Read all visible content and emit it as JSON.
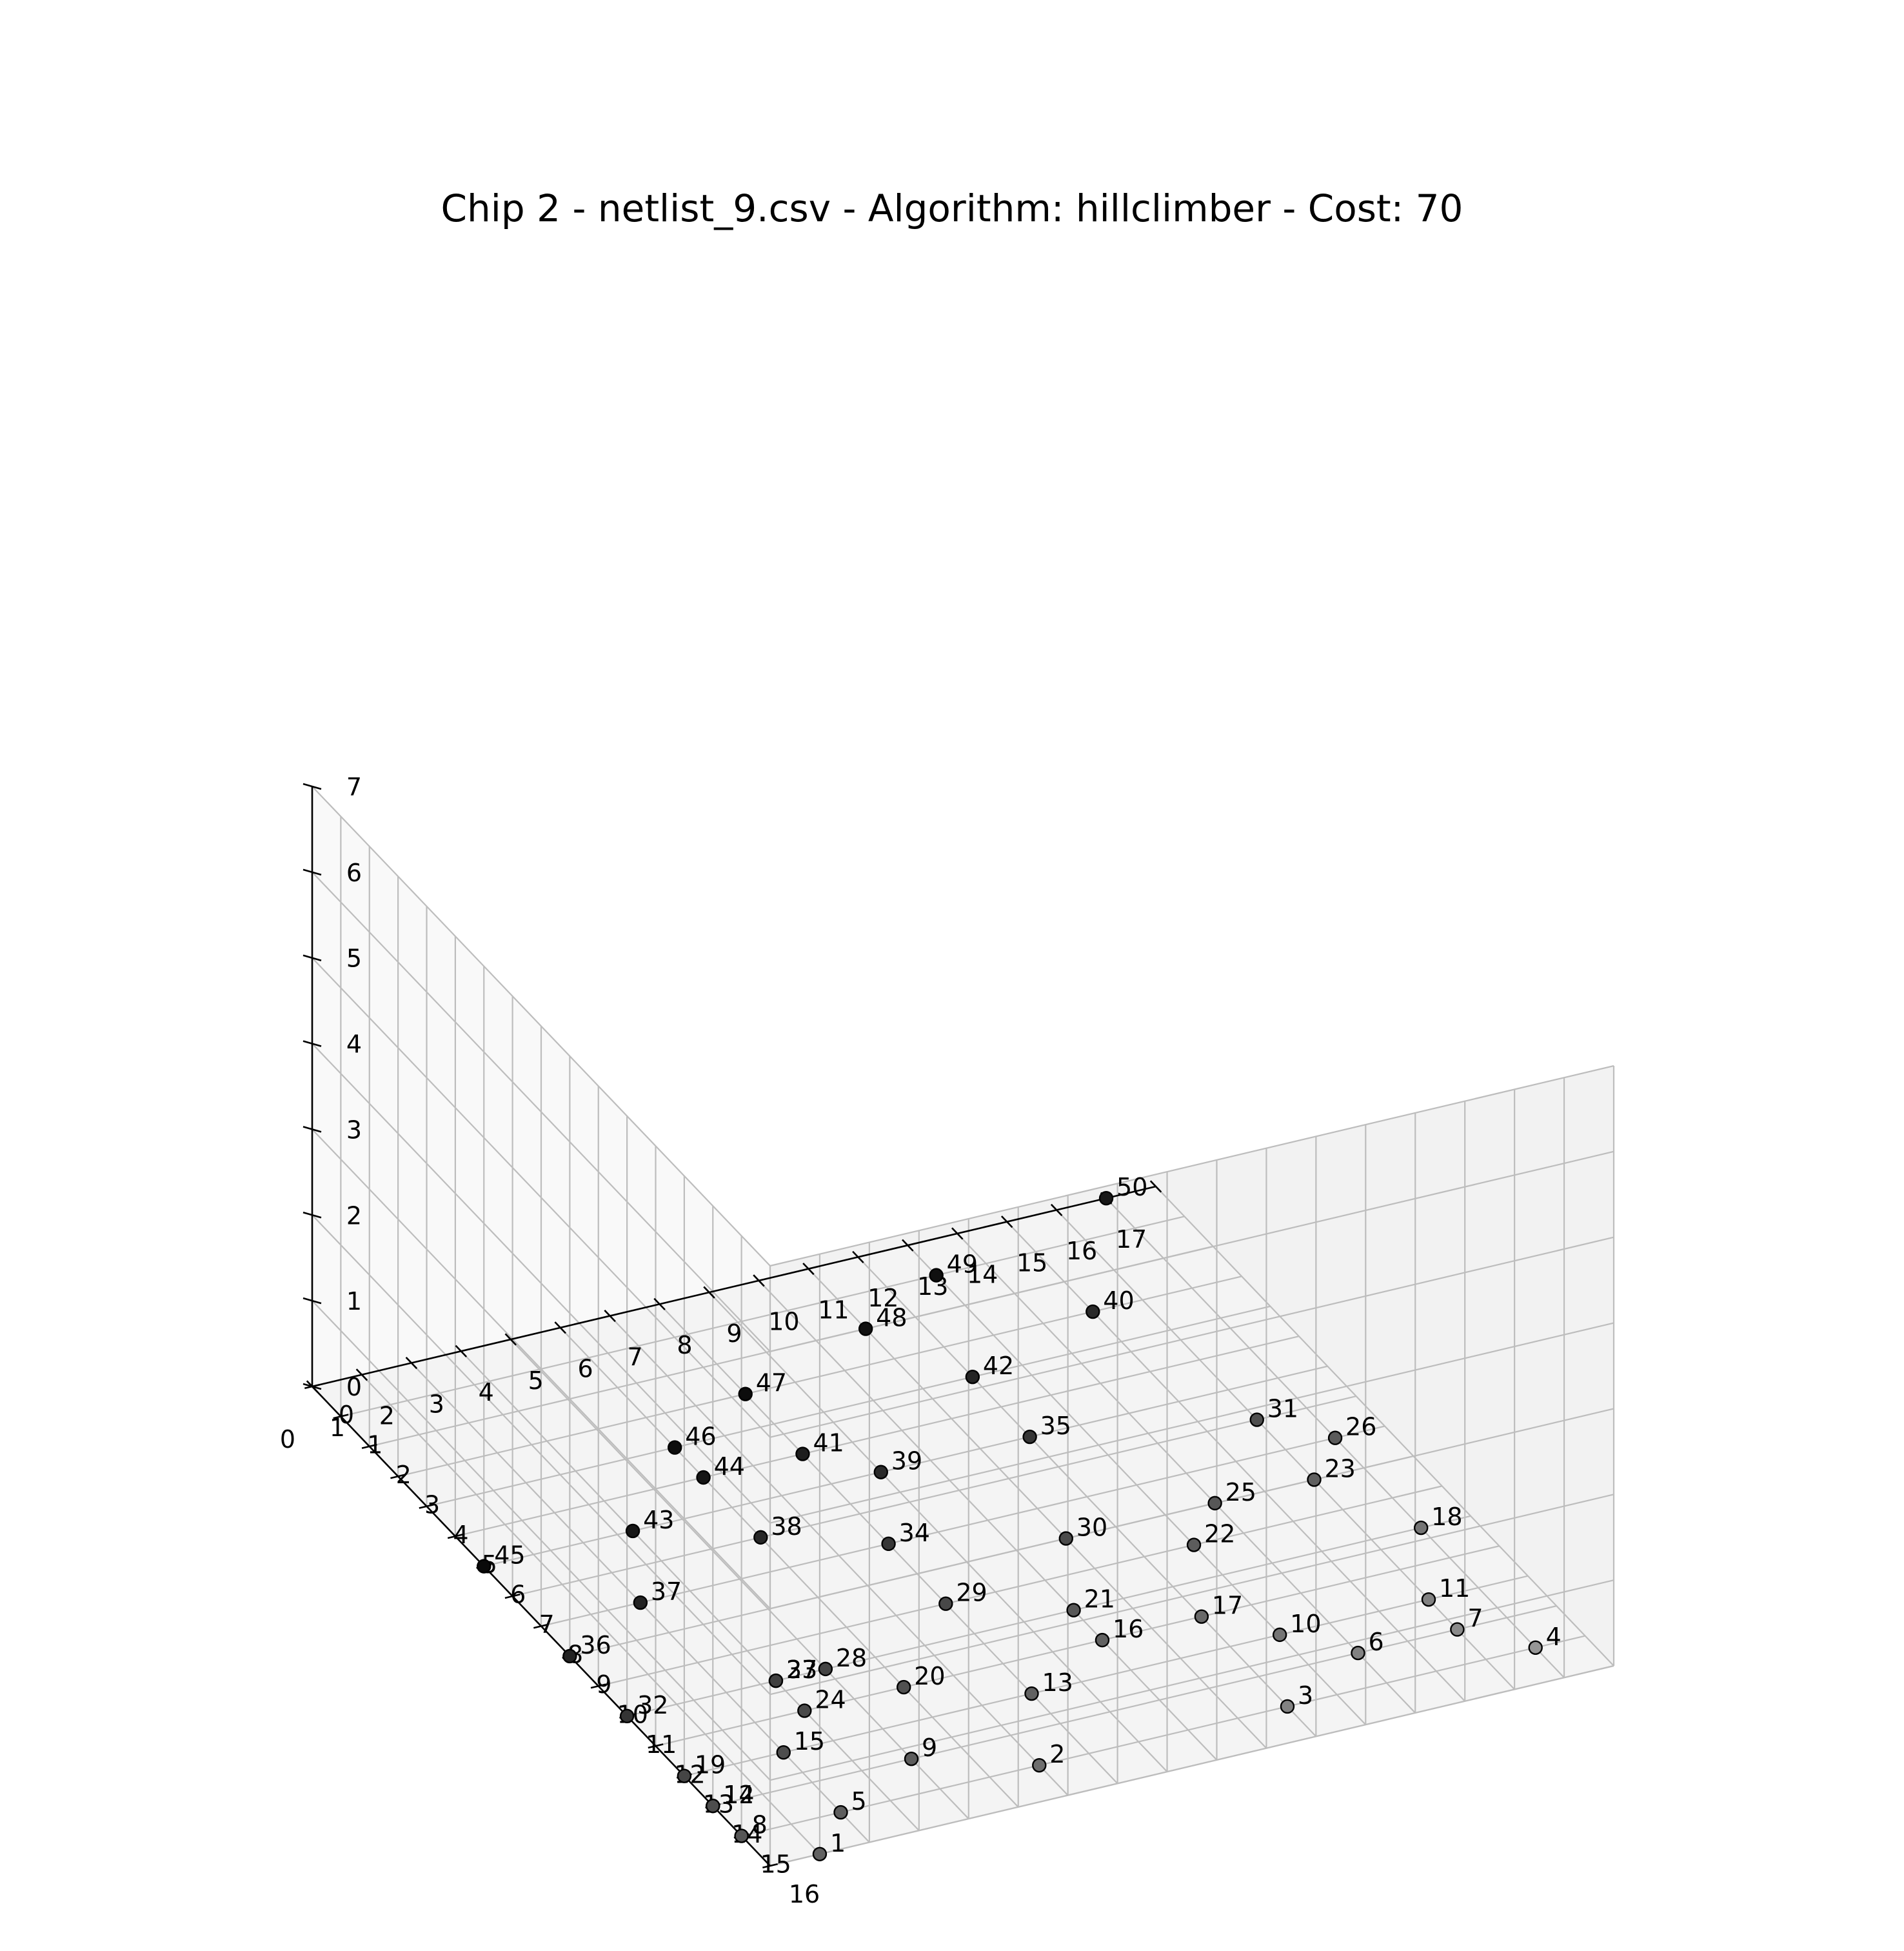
{
  "chart_data": {
    "type": "scatter",
    "projection": "3d",
    "title": "Chip 2 - netlist_9.csv - Algorithm: hillclimber - Cost: 70",
    "xlabel": "",
    "ylabel": "",
    "zlabel": "",
    "xlim": [
      0,
      17
    ],
    "ylim": [
      0,
      16
    ],
    "zlim": [
      0,
      7
    ],
    "x_ticks": [
      "0",
      "1",
      "2",
      "3",
      "4",
      "5",
      "6",
      "7",
      "8",
      "9",
      "10",
      "11",
      "12",
      "13",
      "14",
      "15",
      "16",
      "17"
    ],
    "y_ticks": [
      "0",
      "1",
      "2",
      "3",
      "4",
      "5",
      "6",
      "7",
      "8",
      "9",
      "10",
      "11",
      "12",
      "13",
      "14",
      "15",
      "16"
    ],
    "z_ticks": [
      "0",
      "1",
      "2",
      "3",
      "4",
      "5",
      "6",
      "7"
    ],
    "grid": true,
    "legend": "none",
    "points": [
      {
        "label": "1",
        "x": 1,
        "y": 16,
        "z": 0
      },
      {
        "label": "2",
        "x": 6,
        "y": 15,
        "z": 0
      },
      {
        "label": "3",
        "x": 11,
        "y": 15,
        "z": 0
      },
      {
        "label": "4",
        "x": 16,
        "y": 15,
        "z": 0
      },
      {
        "label": "5",
        "x": 2,
        "y": 15,
        "z": 0
      },
      {
        "label": "6",
        "x": 13,
        "y": 14,
        "z": 0
      },
      {
        "label": "7",
        "x": 15,
        "y": 14,
        "z": 0
      },
      {
        "label": "8",
        "x": 0,
        "y": 15,
        "z": 0
      },
      {
        "label": "9",
        "x": 4,
        "y": 14,
        "z": 0
      },
      {
        "label": "10",
        "x": 12,
        "y": 13,
        "z": 0
      },
      {
        "label": "11",
        "x": 15,
        "y": 13,
        "z": 0
      },
      {
        "label": "12",
        "x": 0,
        "y": 14,
        "z": 0
      },
      {
        "label": "13",
        "x": 7,
        "y": 13,
        "z": 0
      },
      {
        "label": "14",
        "x": 0,
        "y": 14,
        "z": 0
      },
      {
        "label": "15",
        "x": 2,
        "y": 13,
        "z": 0
      },
      {
        "label": "16",
        "x": 9,
        "y": 12,
        "z": 0
      },
      {
        "label": "17",
        "x": 11,
        "y": 12,
        "z": 0
      },
      {
        "label": "18",
        "x": 16,
        "y": 11,
        "z": 0
      },
      {
        "label": "19",
        "x": 0,
        "y": 13,
        "z": 0
      },
      {
        "label": "20",
        "x": 5,
        "y": 12,
        "z": 0
      },
      {
        "label": "21",
        "x": 9,
        "y": 11,
        "z": 0
      },
      {
        "label": "22",
        "x": 12,
        "y": 10,
        "z": 0
      },
      {
        "label": "23",
        "x": 15,
        "y": 9,
        "z": 0
      },
      {
        "label": "24",
        "x": 3,
        "y": 12,
        "z": 0
      },
      {
        "label": "25",
        "x": 13,
        "y": 9,
        "z": 0
      },
      {
        "label": "26",
        "x": 16,
        "y": 8,
        "z": 0
      },
      {
        "label": "27",
        "x": 3,
        "y": 11,
        "z": 0
      },
      {
        "label": "28",
        "x": 4,
        "y": 11,
        "z": 0
      },
      {
        "label": "29",
        "x": 7,
        "y": 10,
        "z": 0
      },
      {
        "label": "30",
        "x": 10,
        "y": 9,
        "z": 0
      },
      {
        "label": "31",
        "x": 15,
        "y": 7,
        "z": 0
      },
      {
        "label": "32",
        "x": 0,
        "y": 11,
        "z": 0
      },
      {
        "label": "33",
        "x": 3,
        "y": 11,
        "z": 0
      },
      {
        "label": "34",
        "x": 7,
        "y": 8,
        "z": 0
      },
      {
        "label": "35",
        "x": 11,
        "y": 6,
        "z": 0
      },
      {
        "label": "36",
        "x": 0,
        "y": 9,
        "z": 0
      },
      {
        "label": "37",
        "x": 2,
        "y": 8,
        "z": 0
      },
      {
        "label": "38",
        "x": 5,
        "y": 7,
        "z": 0
      },
      {
        "label": "39",
        "x": 8,
        "y": 6,
        "z": 0
      },
      {
        "label": "40",
        "x": 14,
        "y": 3,
        "z": 0
      },
      {
        "label": "41",
        "x": 7,
        "y": 5,
        "z": 0
      },
      {
        "label": "42",
        "x": 11,
        "y": 4,
        "z": 0
      },
      {
        "label": "43",
        "x": 3,
        "y": 6,
        "z": 0
      },
      {
        "label": "44",
        "x": 5,
        "y": 5,
        "z": 0
      },
      {
        "label": "45",
        "x": 0,
        "y": 6,
        "z": 0
      },
      {
        "label": "46",
        "x": 5,
        "y": 4,
        "z": 0
      },
      {
        "label": "47",
        "x": 7,
        "y": 3,
        "z": 0
      },
      {
        "label": "48",
        "x": 10,
        "y": 2,
        "z": 0
      },
      {
        "label": "49",
        "x": 12,
        "y": 1,
        "z": 0
      },
      {
        "label": "50",
        "x": 16,
        "y": 0,
        "z": 0
      }
    ]
  }
}
